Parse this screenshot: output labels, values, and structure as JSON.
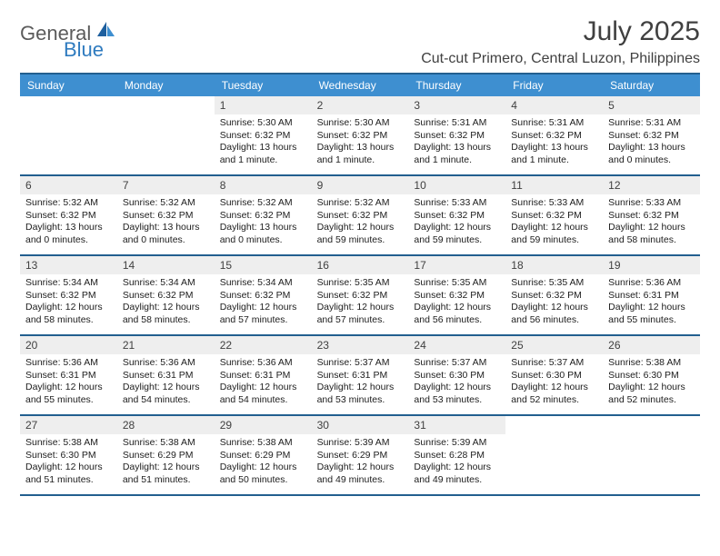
{
  "logo": {
    "general": "General",
    "blue": "Blue"
  },
  "title": "July 2025",
  "location": "Cut-cut Primero, Central Luzon, Philippines",
  "colors": {
    "header_bg": "#3e8fd0",
    "header_border": "#225f8f",
    "daynum_bg": "#eeeeee",
    "text": "#404040",
    "logo_gray": "#5b5b5b",
    "logo_blue": "#2f7bbf"
  },
  "weekdays": [
    "Sunday",
    "Monday",
    "Tuesday",
    "Wednesday",
    "Thursday",
    "Friday",
    "Saturday"
  ],
  "weeks": [
    [
      {
        "num": "",
        "empty": true
      },
      {
        "num": "",
        "empty": true
      },
      {
        "num": "1",
        "sunrise": "Sunrise: 5:30 AM",
        "sunset": "Sunset: 6:32 PM",
        "day1": "Daylight: 13 hours",
        "day2": "and 1 minute."
      },
      {
        "num": "2",
        "sunrise": "Sunrise: 5:30 AM",
        "sunset": "Sunset: 6:32 PM",
        "day1": "Daylight: 13 hours",
        "day2": "and 1 minute."
      },
      {
        "num": "3",
        "sunrise": "Sunrise: 5:31 AM",
        "sunset": "Sunset: 6:32 PM",
        "day1": "Daylight: 13 hours",
        "day2": "and 1 minute."
      },
      {
        "num": "4",
        "sunrise": "Sunrise: 5:31 AM",
        "sunset": "Sunset: 6:32 PM",
        "day1": "Daylight: 13 hours",
        "day2": "and 1 minute."
      },
      {
        "num": "5",
        "sunrise": "Sunrise: 5:31 AM",
        "sunset": "Sunset: 6:32 PM",
        "day1": "Daylight: 13 hours",
        "day2": "and 0 minutes."
      }
    ],
    [
      {
        "num": "6",
        "sunrise": "Sunrise: 5:32 AM",
        "sunset": "Sunset: 6:32 PM",
        "day1": "Daylight: 13 hours",
        "day2": "and 0 minutes."
      },
      {
        "num": "7",
        "sunrise": "Sunrise: 5:32 AM",
        "sunset": "Sunset: 6:32 PM",
        "day1": "Daylight: 13 hours",
        "day2": "and 0 minutes."
      },
      {
        "num": "8",
        "sunrise": "Sunrise: 5:32 AM",
        "sunset": "Sunset: 6:32 PM",
        "day1": "Daylight: 13 hours",
        "day2": "and 0 minutes."
      },
      {
        "num": "9",
        "sunrise": "Sunrise: 5:32 AM",
        "sunset": "Sunset: 6:32 PM",
        "day1": "Daylight: 12 hours",
        "day2": "and 59 minutes."
      },
      {
        "num": "10",
        "sunrise": "Sunrise: 5:33 AM",
        "sunset": "Sunset: 6:32 PM",
        "day1": "Daylight: 12 hours",
        "day2": "and 59 minutes."
      },
      {
        "num": "11",
        "sunrise": "Sunrise: 5:33 AM",
        "sunset": "Sunset: 6:32 PM",
        "day1": "Daylight: 12 hours",
        "day2": "and 59 minutes."
      },
      {
        "num": "12",
        "sunrise": "Sunrise: 5:33 AM",
        "sunset": "Sunset: 6:32 PM",
        "day1": "Daylight: 12 hours",
        "day2": "and 58 minutes."
      }
    ],
    [
      {
        "num": "13",
        "sunrise": "Sunrise: 5:34 AM",
        "sunset": "Sunset: 6:32 PM",
        "day1": "Daylight: 12 hours",
        "day2": "and 58 minutes."
      },
      {
        "num": "14",
        "sunrise": "Sunrise: 5:34 AM",
        "sunset": "Sunset: 6:32 PM",
        "day1": "Daylight: 12 hours",
        "day2": "and 58 minutes."
      },
      {
        "num": "15",
        "sunrise": "Sunrise: 5:34 AM",
        "sunset": "Sunset: 6:32 PM",
        "day1": "Daylight: 12 hours",
        "day2": "and 57 minutes."
      },
      {
        "num": "16",
        "sunrise": "Sunrise: 5:35 AM",
        "sunset": "Sunset: 6:32 PM",
        "day1": "Daylight: 12 hours",
        "day2": "and 57 minutes."
      },
      {
        "num": "17",
        "sunrise": "Sunrise: 5:35 AM",
        "sunset": "Sunset: 6:32 PM",
        "day1": "Daylight: 12 hours",
        "day2": "and 56 minutes."
      },
      {
        "num": "18",
        "sunrise": "Sunrise: 5:35 AM",
        "sunset": "Sunset: 6:32 PM",
        "day1": "Daylight: 12 hours",
        "day2": "and 56 minutes."
      },
      {
        "num": "19",
        "sunrise": "Sunrise: 5:36 AM",
        "sunset": "Sunset: 6:31 PM",
        "day1": "Daylight: 12 hours",
        "day2": "and 55 minutes."
      }
    ],
    [
      {
        "num": "20",
        "sunrise": "Sunrise: 5:36 AM",
        "sunset": "Sunset: 6:31 PM",
        "day1": "Daylight: 12 hours",
        "day2": "and 55 minutes."
      },
      {
        "num": "21",
        "sunrise": "Sunrise: 5:36 AM",
        "sunset": "Sunset: 6:31 PM",
        "day1": "Daylight: 12 hours",
        "day2": "and 54 minutes."
      },
      {
        "num": "22",
        "sunrise": "Sunrise: 5:36 AM",
        "sunset": "Sunset: 6:31 PM",
        "day1": "Daylight: 12 hours",
        "day2": "and 54 minutes."
      },
      {
        "num": "23",
        "sunrise": "Sunrise: 5:37 AM",
        "sunset": "Sunset: 6:31 PM",
        "day1": "Daylight: 12 hours",
        "day2": "and 53 minutes."
      },
      {
        "num": "24",
        "sunrise": "Sunrise: 5:37 AM",
        "sunset": "Sunset: 6:30 PM",
        "day1": "Daylight: 12 hours",
        "day2": "and 53 minutes."
      },
      {
        "num": "25",
        "sunrise": "Sunrise: 5:37 AM",
        "sunset": "Sunset: 6:30 PM",
        "day1": "Daylight: 12 hours",
        "day2": "and 52 minutes."
      },
      {
        "num": "26",
        "sunrise": "Sunrise: 5:38 AM",
        "sunset": "Sunset: 6:30 PM",
        "day1": "Daylight: 12 hours",
        "day2": "and 52 minutes."
      }
    ],
    [
      {
        "num": "27",
        "sunrise": "Sunrise: 5:38 AM",
        "sunset": "Sunset: 6:30 PM",
        "day1": "Daylight: 12 hours",
        "day2": "and 51 minutes."
      },
      {
        "num": "28",
        "sunrise": "Sunrise: 5:38 AM",
        "sunset": "Sunset: 6:29 PM",
        "day1": "Daylight: 12 hours",
        "day2": "and 51 minutes."
      },
      {
        "num": "29",
        "sunrise": "Sunrise: 5:38 AM",
        "sunset": "Sunset: 6:29 PM",
        "day1": "Daylight: 12 hours",
        "day2": "and 50 minutes."
      },
      {
        "num": "30",
        "sunrise": "Sunrise: 5:39 AM",
        "sunset": "Sunset: 6:29 PM",
        "day1": "Daylight: 12 hours",
        "day2": "and 49 minutes."
      },
      {
        "num": "31",
        "sunrise": "Sunrise: 5:39 AM",
        "sunset": "Sunset: 6:28 PM",
        "day1": "Daylight: 12 hours",
        "day2": "and 49 minutes."
      },
      {
        "num": "",
        "empty": true
      },
      {
        "num": "",
        "empty": true
      }
    ]
  ]
}
